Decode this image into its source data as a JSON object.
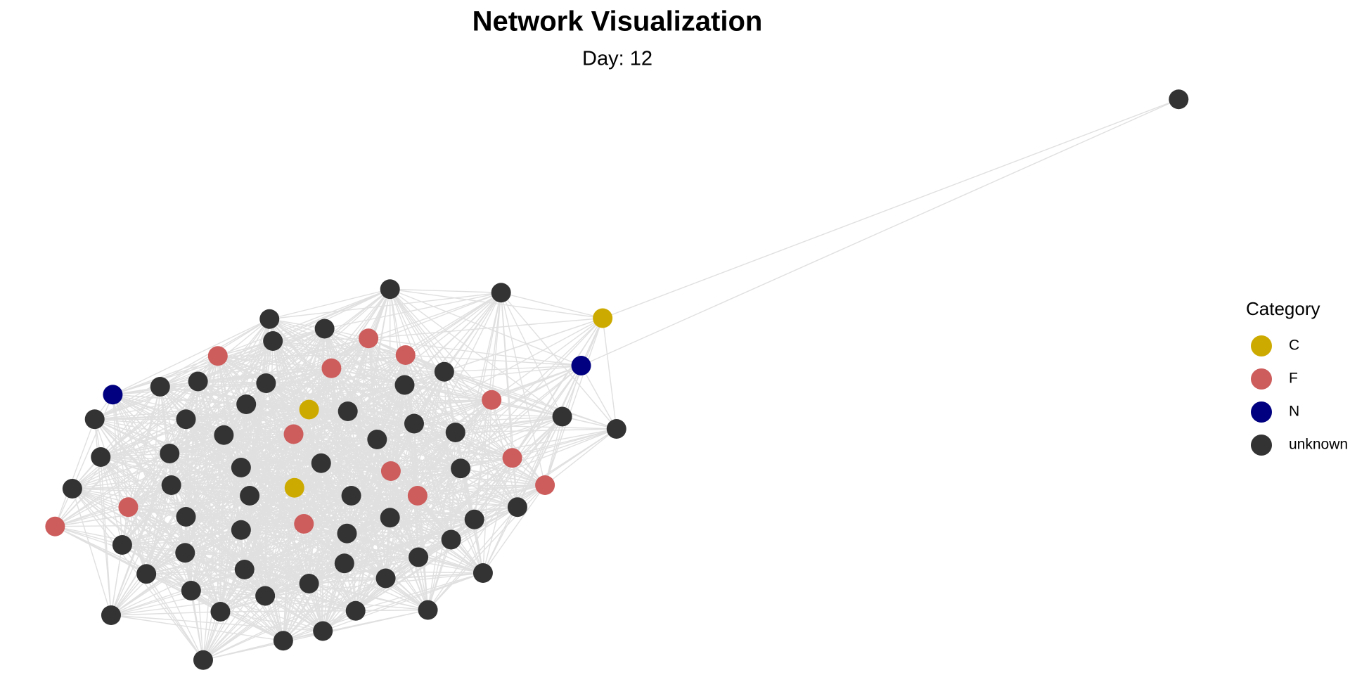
{
  "chart_data": {
    "type": "network",
    "title": "Network Visualization",
    "subtitle": "Day: 12",
    "legend_title": "Category",
    "categories": [
      {
        "name": "C",
        "color": "#cdaa00"
      },
      {
        "name": "F",
        "color": "#cd5c5c"
      },
      {
        "name": "N",
        "color": "#000080"
      },
      {
        "name": "unknown",
        "color": "#333333"
      }
    ],
    "nodes": [
      "C",
      "C",
      "C",
      "N",
      "N",
      "F",
      "F",
      "F",
      "F",
      "F",
      "F",
      "F",
      "F",
      "F",
      "F",
      "F",
      "F",
      "F",
      "unknown",
      "unknown",
      "unknown",
      "unknown",
      "unknown",
      "unknown",
      "unknown",
      "unknown",
      "unknown",
      "unknown",
      "unknown",
      "unknown",
      "unknown",
      "unknown",
      "unknown",
      "unknown",
      "unknown",
      "unknown",
      "unknown",
      "unknown",
      "unknown",
      "unknown",
      "unknown",
      "unknown",
      "unknown",
      "unknown",
      "unknown",
      "unknown",
      "unknown",
      "unknown",
      "unknown",
      "unknown",
      "unknown",
      "unknown",
      "unknown",
      "unknown",
      "unknown",
      "unknown",
      "unknown",
      "unknown",
      "unknown",
      "unknown",
      "unknown",
      "unknown",
      "unknown",
      "unknown",
      "unknown",
      "unknown",
      "unknown",
      "unknown",
      "unknown",
      "unknown",
      "unknown",
      "unknown",
      "unknown"
    ]
  }
}
